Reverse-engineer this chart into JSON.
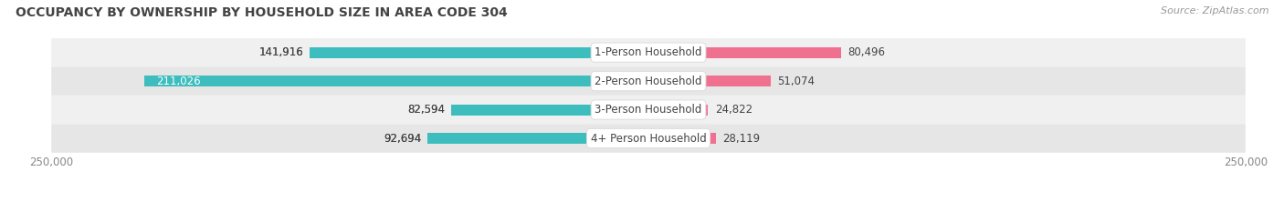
{
  "title": "OCCUPANCY BY OWNERSHIP BY HOUSEHOLD SIZE IN AREA CODE 304",
  "source": "Source: ZipAtlas.com",
  "categories": [
    "1-Person Household",
    "2-Person Household",
    "3-Person Household",
    "4+ Person Household"
  ],
  "owner_values": [
    141916,
    211026,
    82594,
    92694
  ],
  "renter_values": [
    80496,
    51074,
    24822,
    28119
  ],
  "owner_color": "#3DBDBD",
  "renter_color": "#F07090",
  "row_bg_colors": [
    "#F0F0F0",
    "#E6E6E6"
  ],
  "axis_max": 250000,
  "title_fontsize": 10,
  "label_fontsize": 8.5,
  "tick_fontsize": 8.5,
  "source_fontsize": 8,
  "legend_fontsize": 8.5,
  "center_label_color": "#444444",
  "value_color": "#444444",
  "background_color": "#FFFFFF"
}
